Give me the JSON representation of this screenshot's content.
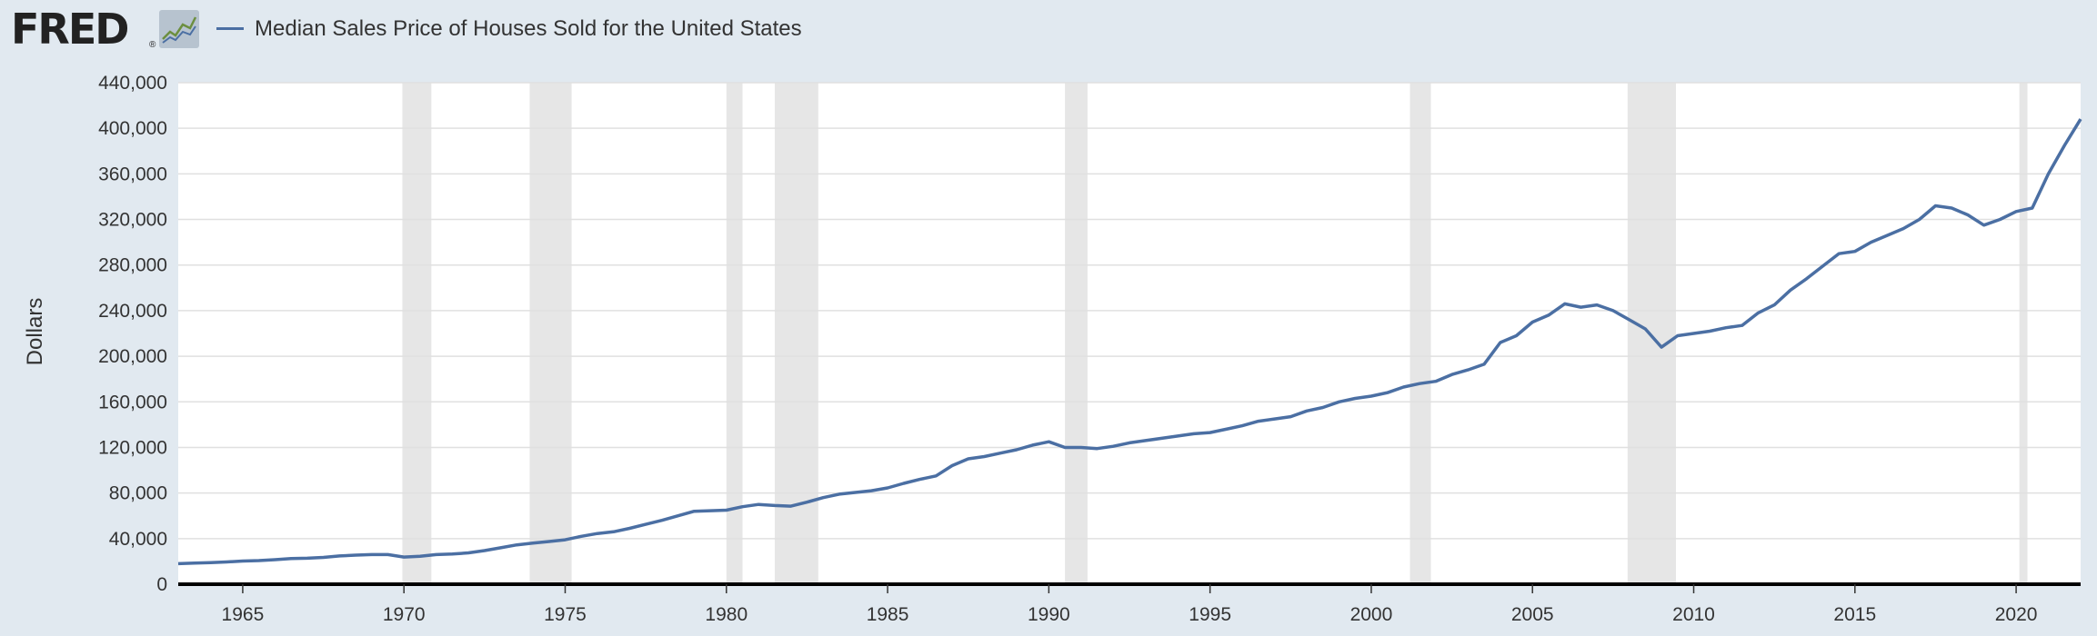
{
  "header": {
    "logo_text": "FRED",
    "logo_reg": "®",
    "series_title": "Median Sales Price of Houses Sold for the United States"
  },
  "colors": {
    "line": "#4b6fa3",
    "recession": "#e6e6e6",
    "background": "#e1e9f0",
    "plot": "#ffffff"
  },
  "icons": [
    "fred-logo-chart-icon",
    "legend-line-icon"
  ],
  "chart_data": {
    "type": "line",
    "title": "Median Sales Price of Houses Sold for the United States",
    "xlabel": "",
    "ylabel": "Dollars",
    "xlim": [
      1963.0,
      2022.0
    ],
    "ylim": [
      0,
      440000
    ],
    "x_ticks": [
      1965,
      1970,
      1975,
      1980,
      1985,
      1990,
      1995,
      2000,
      2005,
      2010,
      2015,
      2020
    ],
    "y_ticks": [
      0,
      40000,
      80000,
      120000,
      160000,
      200000,
      240000,
      280000,
      320000,
      360000,
      400000,
      440000
    ],
    "y_tick_labels": [
      "0",
      "40,000",
      "80,000",
      "120,000",
      "160,000",
      "200,000",
      "240,000",
      "280,000",
      "320,000",
      "360,000",
      "400,000",
      "440,000"
    ],
    "grid": true,
    "legend": "top-left",
    "recessions": [
      [
        1969.95,
        1970.85
      ],
      [
        1973.9,
        1975.2
      ],
      [
        1980.0,
        1980.5
      ],
      [
        1981.5,
        1982.85
      ],
      [
        1990.5,
        1991.2
      ],
      [
        2001.2,
        2001.85
      ],
      [
        2007.95,
        2009.45
      ],
      [
        2020.1,
        2020.35
      ]
    ],
    "series": [
      {
        "name": "Median Sales Price of Houses Sold for the United States",
        "x": [
          1963.0,
          1963.5,
          1964.0,
          1964.5,
          1965.0,
          1965.5,
          1966.0,
          1966.5,
          1967.0,
          1967.5,
          1968.0,
          1968.5,
          1969.0,
          1969.5,
          1970.0,
          1970.5,
          1971.0,
          1971.5,
          1972.0,
          1972.5,
          1973.0,
          1973.5,
          1974.0,
          1974.5,
          1975.0,
          1975.5,
          1976.0,
          1976.5,
          1977.0,
          1977.5,
          1978.0,
          1978.5,
          1979.0,
          1979.5,
          1980.0,
          1980.5,
          1981.0,
          1981.5,
          1982.0,
          1982.5,
          1983.0,
          1983.5,
          1984.0,
          1984.5,
          1985.0,
          1985.5,
          1986.0,
          1986.5,
          1987.0,
          1987.5,
          1988.0,
          1988.5,
          1989.0,
          1989.5,
          1990.0,
          1990.5,
          1991.0,
          1991.5,
          1992.0,
          1992.5,
          1993.0,
          1993.5,
          1994.0,
          1994.5,
          1995.0,
          1995.5,
          1996.0,
          1996.5,
          1997.0,
          1997.5,
          1998.0,
          1998.5,
          1999.0,
          1999.5,
          2000.0,
          2000.5,
          2001.0,
          2001.5,
          2002.0,
          2002.5,
          2003.0,
          2003.5,
          2004.0,
          2004.5,
          2005.0,
          2005.5,
          2006.0,
          2006.5,
          2007.0,
          2007.5,
          2008.0,
          2008.5,
          2009.0,
          2009.5,
          2010.0,
          2010.5,
          2011.0,
          2011.5,
          2012.0,
          2012.5,
          2013.0,
          2013.5,
          2014.0,
          2014.5,
          2015.0,
          2015.5,
          2016.0,
          2016.5,
          2017.0,
          2017.5,
          2018.0,
          2018.5,
          2019.0,
          2019.5,
          2020.0,
          2020.5,
          2021.0,
          2021.5,
          2022.0
        ],
        "values": [
          18000,
          18500,
          19000,
          19500,
          20300,
          20700,
          21500,
          22500,
          22800,
          23500,
          24800,
          25500,
          26000,
          26000,
          23800,
          24500,
          26000,
          26500,
          27500,
          29500,
          32000,
          34500,
          36000,
          37500,
          39000,
          42000,
          44500,
          46000,
          49000,
          52500,
          56000,
          60000,
          64000,
          64500,
          65000,
          68000,
          70000,
          69000,
          68500,
          72000,
          76000,
          79000,
          80500,
          82000,
          84500,
          88500,
          92000,
          95000,
          104000,
          110000,
          112000,
          115000,
          118000,
          122000,
          125000,
          120000,
          120000,
          119000,
          121000,
          124000,
          126000,
          128000,
          130000,
          132000,
          133000,
          136000,
          139000,
          143000,
          145000,
          147000,
          152000,
          155000,
          160000,
          163000,
          165000,
          168000,
          173000,
          176000,
          178000,
          184000,
          188000,
          193000,
          212000,
          218000,
          230000,
          236000,
          246000,
          243000,
          245000,
          240000,
          232000,
          224000,
          208000,
          218000,
          220000,
          222000,
          225000,
          227000,
          238000,
          245000,
          258000,
          268000,
          279000,
          290000,
          292000,
          300000,
          306000,
          312000,
          320000,
          332000,
          330000,
          324000,
          315000,
          320000,
          327000,
          330000,
          360000,
          385000,
          408000
        ]
      }
    ]
  }
}
